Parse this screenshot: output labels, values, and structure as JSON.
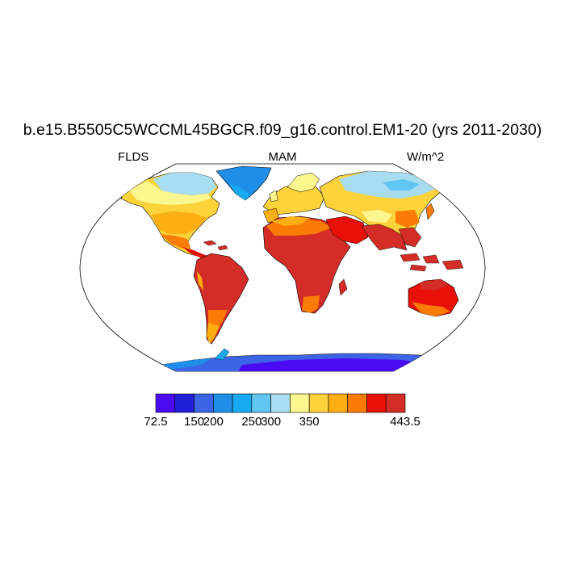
{
  "map": {
    "title": "b.e15.B5505C5WCCML45BGCR.f09_g16.control.EM1-20 (yrs 2011-2030)",
    "left_label": "FLDS",
    "center_label": "MAM",
    "right_label": "W/m^2",
    "projection": "Robinson"
  },
  "colorbar": {
    "colors": [
      "#4b0bf2",
      "#2020d8",
      "#3c64e6",
      "#1e8ee8",
      "#16aaf0",
      "#62c6f2",
      "#a8dcf0",
      "#fbf78e",
      "#fdd23a",
      "#fcae12",
      "#fa7b05",
      "#e81008",
      "#d42c26"
    ],
    "tick_labels": [
      {
        "text": "72.5",
        "index": 0
      },
      {
        "text": "150",
        "index": 2
      },
      {
        "text": "200",
        "index": 3
      },
      {
        "text": "250",
        "index": 5
      },
      {
        "text": "300",
        "index": 6
      },
      {
        "text": "350",
        "index": 8
      },
      {
        "text": "443.5",
        "index": 13
      }
    ]
  }
}
